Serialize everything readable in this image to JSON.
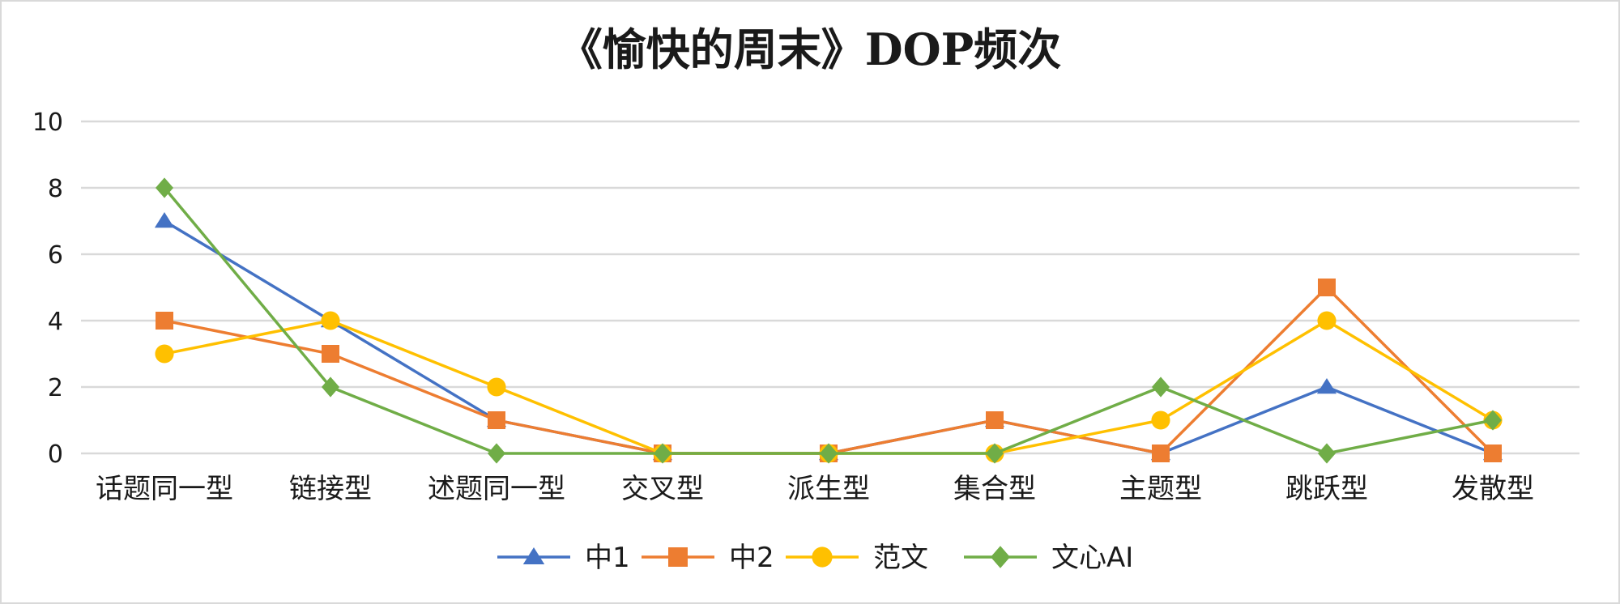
{
  "chart_data": {
    "type": "line",
    "title": "《愉快的周末》DOP频次",
    "xlabel": "",
    "ylabel": "",
    "categories": [
      "话题同一型",
      "链接型",
      "述题同一型",
      "交叉型",
      "派生型",
      "集合型",
      "主题型",
      "跳跃型",
      "发散型"
    ],
    "ylim": [
      0,
      10
    ],
    "yticks": [
      0,
      2,
      4,
      6,
      8,
      10
    ],
    "grid": true,
    "legend_position": "bottom",
    "series": [
      {
        "name": "中1",
        "color": "#4472C4",
        "marker": "triangle",
        "values": [
          7,
          4,
          1,
          0,
          0,
          1,
          0,
          2,
          0
        ]
      },
      {
        "name": "中2",
        "color": "#ED7D31",
        "marker": "square",
        "values": [
          4,
          3,
          1,
          0,
          0,
          1,
          0,
          5,
          0
        ]
      },
      {
        "name": "范文",
        "color": "#FFC000",
        "marker": "circle",
        "values": [
          3,
          4,
          2,
          0,
          0,
          0,
          1,
          4,
          1
        ]
      },
      {
        "name": "文心AI",
        "color": "#70AD47",
        "marker": "diamond",
        "values": [
          8,
          2,
          0,
          0,
          0,
          0,
          2,
          0,
          1
        ]
      }
    ]
  }
}
